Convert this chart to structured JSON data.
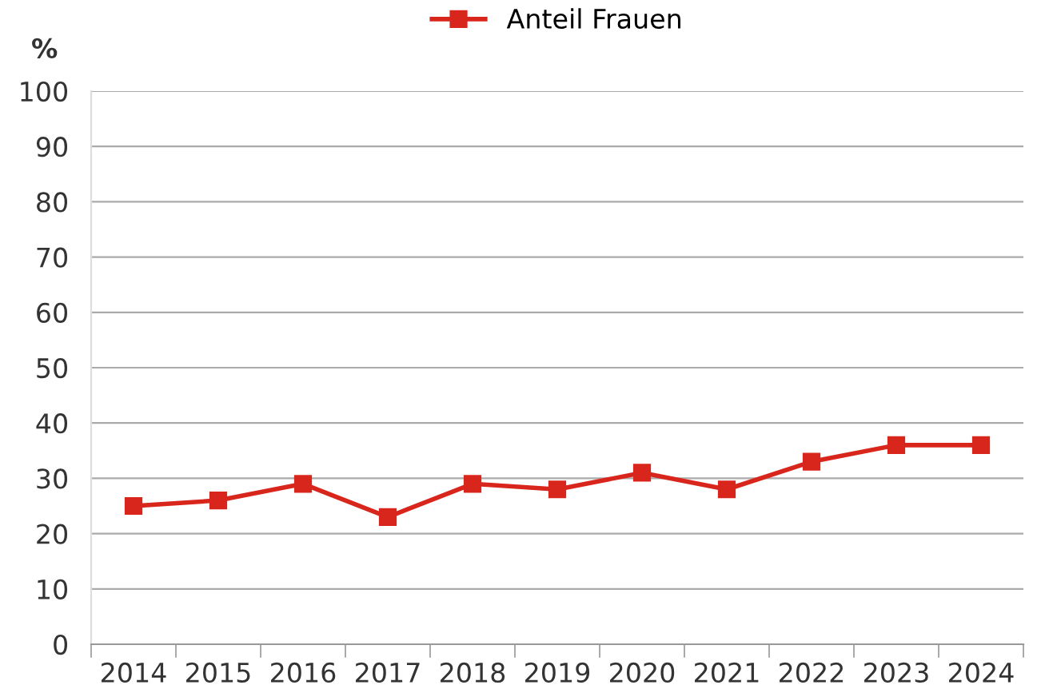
{
  "chart_data": {
    "type": "line",
    "ylabel": "%",
    "categories": [
      "2014",
      "2015",
      "2016",
      "2017",
      "2018",
      "2019",
      "2020",
      "2021",
      "2022",
      "2023",
      "2024"
    ],
    "series": [
      {
        "name": "Anteil Frauen",
        "color": "#d9261c",
        "values": [
          25,
          26,
          29,
          23,
          29,
          28,
          31,
          28,
          33,
          36,
          36
        ]
      }
    ],
    "ylim": [
      0,
      100
    ],
    "yticks": [
      0,
      10,
      20,
      30,
      40,
      50,
      60,
      70,
      80,
      90,
      100
    ],
    "grid": "y",
    "legend": "top",
    "marker": "square",
    "line_style": "solid"
  }
}
